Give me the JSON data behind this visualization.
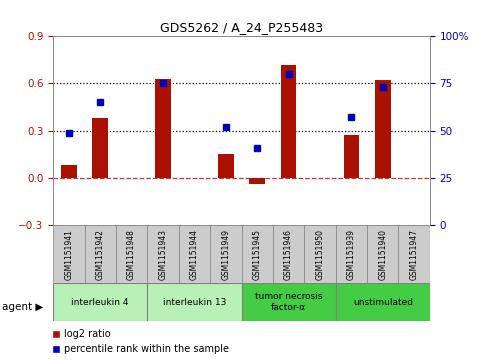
{
  "title": "GDS5262 / A_24_P255483",
  "samples": [
    "GSM1151941",
    "GSM1151942",
    "GSM1151948",
    "GSM1151943",
    "GSM1151944",
    "GSM1151949",
    "GSM1151945",
    "GSM1151946",
    "GSM1151950",
    "GSM1151939",
    "GSM1151940",
    "GSM1151947"
  ],
  "log2_ratio": [
    0.08,
    0.38,
    0.0,
    0.63,
    0.0,
    0.15,
    -0.04,
    0.72,
    0.0,
    0.27,
    0.62,
    0.0
  ],
  "percentile_rank": [
    49,
    65,
    null,
    75,
    null,
    52,
    41,
    80,
    null,
    57,
    73,
    null
  ],
  "agents": [
    {
      "label": "interleukin 4",
      "start": 0,
      "end": 3,
      "color": "#b8f0b8"
    },
    {
      "label": "interleukin 13",
      "start": 3,
      "end": 6,
      "color": "#b8f0b8"
    },
    {
      "label": "tumor necrosis\nfactor-α",
      "start": 6,
      "end": 9,
      "color": "#44cc44"
    },
    {
      "label": "unstimulated",
      "start": 9,
      "end": 12,
      "color": "#44cc44"
    }
  ],
  "ylim_left": [
    -0.3,
    0.9
  ],
  "ylim_right": [
    0,
    100
  ],
  "yticks_left": [
    -0.3,
    0.0,
    0.3,
    0.6,
    0.9
  ],
  "yticks_right": [
    0,
    25,
    50,
    75,
    100
  ],
  "hline_dotted_vals": [
    0.3,
    0.6
  ],
  "hline_zero_color": "#cc3333",
  "bar_color": "#aa1100",
  "point_color": "#0000bb",
  "plot_bg": "#ffffff",
  "sample_box_color": "#cccccc",
  "bar_width": 0.5
}
